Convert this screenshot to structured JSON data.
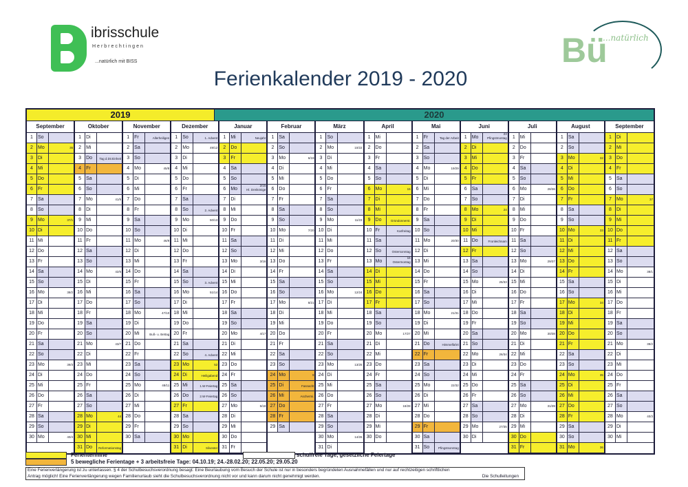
{
  "header": {
    "school_logo": {
      "name": "ibrisschule",
      "town": "Herbrechtingen",
      "tagline": "...natürlich mit BISS"
    },
    "partner_logo": {
      "text": "Bü",
      "tagline": "...natürlich"
    },
    "title": "Ferienkalender 2019 - 2020"
  },
  "years": [
    "2019",
    "2020"
  ],
  "weekdays": [
    "Mo",
    "Di",
    "Mi",
    "Do",
    "Fr",
    "Sa",
    "So"
  ],
  "colors": {
    "holiday": "#f6ee2c",
    "movable": "#f2b63c",
    "free": "#dcdcf0",
    "year2019": "#f4ec2a",
    "year2020": "#2a9a8c"
  },
  "months": [
    {
      "name": "September",
      "start": 6,
      "days": 30,
      "holidays": [
        2,
        3,
        4,
        5,
        6,
        9,
        10
      ],
      "movable": [],
      "free": [],
      "notes": {},
      "weeks": {
        "2": "36",
        "9": "37/1",
        "16": "38/2",
        "23": "39/3",
        "30": "40/4"
      }
    },
    {
      "name": "Oktober",
      "start": 1,
      "days": 31,
      "holidays": [
        28,
        29,
        30,
        31
      ],
      "movable": [
        4
      ],
      "free": [
        3
      ],
      "notes": {
        "3": "Tag d.Dt.Einheit",
        "31": "Reformationstag"
      },
      "weeks": {
        "7": "41/5",
        "14": "42/6",
        "21": "43/7",
        "28": "44"
      }
    },
    {
      "name": "November",
      "start": 4,
      "days": 30,
      "holidays": [],
      "movable": [],
      "free": [
        1
      ],
      "notes": {
        "1": "Allerheiligen",
        "20": "Buß- u. Bettag"
      },
      "weeks": {
        "4": "45/8",
        "11": "46/9",
        "18": "47/10",
        "25": "48/11"
      }
    },
    {
      "name": "Dezember",
      "start": 6,
      "days": 31,
      "holidays": [
        23,
        24,
        27,
        30,
        31
      ],
      "movable": [],
      "free": [
        25,
        26
      ],
      "notes": {
        "1": "1. Advent",
        "8": "2. Advent",
        "15": "3. Advent",
        "22": "4. Advent",
        "24": "Heiligabend",
        "25": "1.W-Feiertag",
        "26": "2.W-Feiertag",
        "31": "Silvester"
      },
      "weeks": {
        "2": "49/12",
        "9": "50/13",
        "16": "51/14",
        "23": "52"
      }
    },
    {
      "name": "Januar",
      "start": 2,
      "days": 31,
      "holidays": [
        2,
        3
      ],
      "movable": [],
      "free": [
        1,
        6
      ],
      "notes": {
        "1": "Neujahr",
        "6": "Hl. Dreikönige"
      },
      "weeks": {
        "6": "2/15",
        "13": "3/16",
        "20": "4/17",
        "27": "5/18"
      }
    },
    {
      "name": "Februar",
      "start": 5,
      "days": 29,
      "holidays": [],
      "movable": [
        24,
        25,
        26,
        27,
        28
      ],
      "free": [],
      "notes": {
        "25": "Fasnacht",
        "26": "Aschermi."
      },
      "weeks": {
        "3": "6/19",
        "10": "7/20",
        "17": "8/21",
        "24": "9"
      }
    },
    {
      "name": "März",
      "start": 6,
      "days": 31,
      "holidays": [],
      "movable": [],
      "free": [],
      "notes": {},
      "weeks": {
        "2": "10/22",
        "9": "11/23",
        "16": "12/24",
        "23": "13/25",
        "30": "14/26"
      }
    },
    {
      "name": "April",
      "start": 2,
      "days": 30,
      "holidays": [
        6,
        7,
        8,
        9,
        14,
        15,
        16,
        17
      ],
      "movable": [],
      "free": [
        10,
        12,
        13
      ],
      "notes": {
        "9": "Gründonnerst.",
        "10": "Karfreitag",
        "12": "Ostersonntag",
        "13": "Ostermontag"
      },
      "weeks": {
        "6": "15",
        "13": "16",
        "20": "17/27",
        "27": "18/28"
      }
    },
    {
      "name": "Mai",
      "start": 4,
      "days": 31,
      "holidays": [],
      "movable": [
        22,
        29
      ],
      "free": [
        1,
        21,
        31
      ],
      "notes": {
        "1": "Tag der Arbeit",
        "21": "Himmelfahrt",
        "31": "Pfingstsonntag"
      },
      "weeks": {
        "4": "19/29",
        "11": "20/30",
        "18": "21/31",
        "25": "22/32"
      }
    },
    {
      "name": "Juni",
      "start": 0,
      "days": 30,
      "holidays": [
        2,
        3,
        4,
        5,
        8,
        9,
        10,
        12
      ],
      "movable": [],
      "free": [
        1,
        11
      ],
      "notes": {
        "1": "Pfingstmontag",
        "11": "Fronleichnam"
      },
      "weeks": {
        "1": "23",
        "8": "24",
        "15": "25/33",
        "22": "26/34",
        "29": "27/35"
      }
    },
    {
      "name": "Juli",
      "start": 2,
      "days": 31,
      "holidays": [
        30,
        31
      ],
      "movable": [],
      "free": [],
      "notes": {},
      "weeks": {
        "6": "28/36",
        "13": "29/37",
        "20": "30/38",
        "27": "31/39"
      }
    },
    {
      "name": "August",
      "start": 5,
      "days": 31,
      "holidays": [
        3,
        4,
        5,
        6,
        7,
        10,
        11,
        12,
        13,
        14,
        17,
        18,
        19,
        20,
        21,
        24,
        25,
        26,
        27,
        28,
        31
      ],
      "movable": [],
      "free": [],
      "notes": {},
      "weeks": {
        "3": "32",
        "10": "33",
        "17": "34",
        "24": "35",
        "31": "36"
      }
    },
    {
      "name": "September",
      "start": 1,
      "days": 30,
      "holidays": [
        1,
        2,
        3,
        4,
        7,
        8,
        9,
        10,
        11
      ],
      "movable": [],
      "free": [],
      "notes": {},
      "weeks": {
        "7": "37",
        "14": "38/1",
        "21": "39/2",
        "28": "40/3"
      }
    }
  ],
  "legend": {
    "holidays": "Ferientermine",
    "free": "schulfreie Tage, gesetzliche Feiertage",
    "movable": "5 bewegliche Ferientage + 3 arbeitsfreie Tage: 04.10.19; 24.-28.02.20; 22.05.20; 29.05.20"
  },
  "info": {
    "line1": "Eine Ferienverlängerung ist zu unterlassen. § 4 der Schulbesuchsverordnung besagt: Eine Beurlaubung vom Besuch der Schule ist nur in besonders begründeten Ausnahmefällen und nur auf rechtzeitigen schriftlichen",
    "line2": "Antrag möglich! Eine Ferienverlängerung wegen Familienurlaub sieht die Schulbesuchsverordnung nicht vor und kann darum nicht genehmigt werden.",
    "signature": "Die Schulleitungen"
  }
}
